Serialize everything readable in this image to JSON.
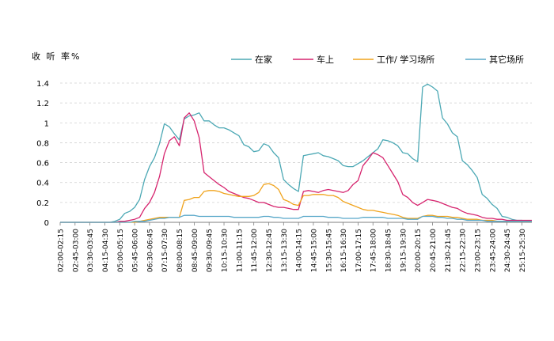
{
  "chart_data": {
    "type": "line",
    "ylabel": "收 听 率%",
    "ylim": [
      0,
      1.4
    ],
    "y_ticks": [
      "0",
      "0.2",
      "0.4",
      "0.6",
      "0.8",
      "1",
      "1.2",
      "1.4"
    ],
    "x_tick_labels": [
      "02:00-02:15",
      "02:45-03:00",
      "03:30-03:45",
      "04:15-04:30",
      "05:00-05:15",
      "05:45-06:00",
      "06:30-06:45",
      "07:15-07:30",
      "08:00-08:15",
      "08:45-09:00",
      "09:30-09:45",
      "10:15-10:30",
      "11:00-11:15",
      "11:45-12:00",
      "12:30-12:45",
      "13:15-13:30",
      "14:00-14:15",
      "14:45-15:00",
      "15:30-15:45",
      "16:15-16:30",
      "17:00-17:15",
      "17:45-18:00",
      "18:30-18:45",
      "19:15-19:30",
      "20:00-20:15",
      "20:45-21:00",
      "21:30-21:45",
      "22:15-22:30",
      "23:00-23:15",
      "23:45-24:00",
      "24:30-24:45",
      "25:15-25:30"
    ],
    "grid": "horizontal dashed",
    "legend_position": "top",
    "series": [
      {
        "name": "在家",
        "color": "#4ba8b4",
        "values": [
          0,
          0,
          0,
          0,
          0,
          0,
          0,
          0,
          0,
          0,
          0,
          0.01,
          0.03,
          0.09,
          0.11,
          0.15,
          0.23,
          0.43,
          0.56,
          0.65,
          0.79,
          0.99,
          0.96,
          0.89,
          0.83,
          1.04,
          1.07,
          1.08,
          1.1,
          1.02,
          1.02,
          0.98,
          0.95,
          0.95,
          0.93,
          0.9,
          0.87,
          0.78,
          0.76,
          0.71,
          0.72,
          0.79,
          0.77,
          0.7,
          0.65,
          0.43,
          0.38,
          0.34,
          0.31,
          0.67,
          0.68,
          0.69,
          0.7,
          0.67,
          0.66,
          0.64,
          0.62,
          0.57,
          0.56,
          0.56,
          0.59,
          0.62,
          0.66,
          0.7,
          0.74,
          0.83,
          0.82,
          0.8,
          0.77,
          0.7,
          0.69,
          0.64,
          0.61,
          1.36,
          1.39,
          1.36,
          1.32,
          1.05,
          0.99,
          0.9,
          0.86,
          0.62,
          0.58,
          0.52,
          0.45,
          0.28,
          0.24,
          0.18,
          0.14,
          0.06,
          0.05,
          0.03,
          0.02,
          0.02,
          0.01,
          0.01
        ]
      },
      {
        "name": "车上",
        "color": "#d6246e",
        "values": [
          0,
          0,
          0,
          0,
          0,
          0,
          0,
          0,
          0,
          0,
          0,
          0,
          0.01,
          0.01,
          0.02,
          0.03,
          0.05,
          0.14,
          0.2,
          0.3,
          0.46,
          0.69,
          0.82,
          0.86,
          0.77,
          1.05,
          1.1,
          1.02,
          0.85,
          0.5,
          0.46,
          0.42,
          0.38,
          0.35,
          0.31,
          0.29,
          0.27,
          0.25,
          0.24,
          0.22,
          0.2,
          0.2,
          0.18,
          0.16,
          0.15,
          0.15,
          0.14,
          0.13,
          0.13,
          0.31,
          0.32,
          0.31,
          0.3,
          0.32,
          0.33,
          0.32,
          0.31,
          0.3,
          0.32,
          0.38,
          0.42,
          0.57,
          0.63,
          0.7,
          0.68,
          0.65,
          0.57,
          0.49,
          0.41,
          0.28,
          0.25,
          0.2,
          0.17,
          0.2,
          0.23,
          0.22,
          0.21,
          0.19,
          0.17,
          0.15,
          0.14,
          0.11,
          0.09,
          0.08,
          0.07,
          0.05,
          0.04,
          0.04,
          0.03,
          0.03,
          0.02,
          0.02,
          0.02,
          0.02,
          0.02,
          0.02
        ]
      },
      {
        "name": "工作/ 学习场所",
        "color": "#f0a31c",
        "values": [
          0,
          0,
          0,
          0,
          0,
          0,
          0,
          0,
          0,
          0,
          0,
          0,
          0,
          0,
          0,
          0,
          0.01,
          0.02,
          0.03,
          0.04,
          0.05,
          0.05,
          0.05,
          0.05,
          0.05,
          0.22,
          0.23,
          0.25,
          0.25,
          0.31,
          0.32,
          0.32,
          0.31,
          0.29,
          0.28,
          0.27,
          0.26,
          0.26,
          0.26,
          0.27,
          0.3,
          0.38,
          0.39,
          0.37,
          0.33,
          0.23,
          0.21,
          0.18,
          0.17,
          0.27,
          0.27,
          0.28,
          0.28,
          0.28,
          0.27,
          0.27,
          0.25,
          0.21,
          0.19,
          0.17,
          0.15,
          0.13,
          0.12,
          0.12,
          0.11,
          0.1,
          0.09,
          0.08,
          0.07,
          0.05,
          0.04,
          0.04,
          0.04,
          0.06,
          0.07,
          0.07,
          0.06,
          0.06,
          0.06,
          0.05,
          0.05,
          0.04,
          0.03,
          0.03,
          0.03,
          0.02,
          0.02,
          0.02,
          0.01,
          0.01,
          0.01,
          0.01,
          0.01,
          0.01,
          0.01,
          0.01
        ]
      },
      {
        "name": "其它场所",
        "color": "#59a8c9",
        "values": [
          0,
          0,
          0,
          0,
          0,
          0,
          0,
          0,
          0,
          0,
          0,
          0,
          0,
          0,
          0,
          0.01,
          0.01,
          0.01,
          0.02,
          0.03,
          0.04,
          0.04,
          0.05,
          0.05,
          0.05,
          0.07,
          0.07,
          0.07,
          0.06,
          0.06,
          0.06,
          0.06,
          0.06,
          0.06,
          0.06,
          0.05,
          0.05,
          0.05,
          0.05,
          0.05,
          0.05,
          0.06,
          0.06,
          0.05,
          0.05,
          0.04,
          0.04,
          0.04,
          0.04,
          0.06,
          0.06,
          0.06,
          0.06,
          0.06,
          0.05,
          0.05,
          0.05,
          0.04,
          0.04,
          0.04,
          0.04,
          0.05,
          0.05,
          0.05,
          0.05,
          0.05,
          0.04,
          0.04,
          0.04,
          0.04,
          0.03,
          0.03,
          0.03,
          0.06,
          0.06,
          0.06,
          0.05,
          0.05,
          0.04,
          0.04,
          0.03,
          0.03,
          0.02,
          0.02,
          0.02,
          0.02,
          0.01,
          0.01,
          0.01,
          0.01,
          0.01,
          0.01,
          0.01,
          0.01,
          0.01,
          0.01
        ]
      }
    ]
  }
}
